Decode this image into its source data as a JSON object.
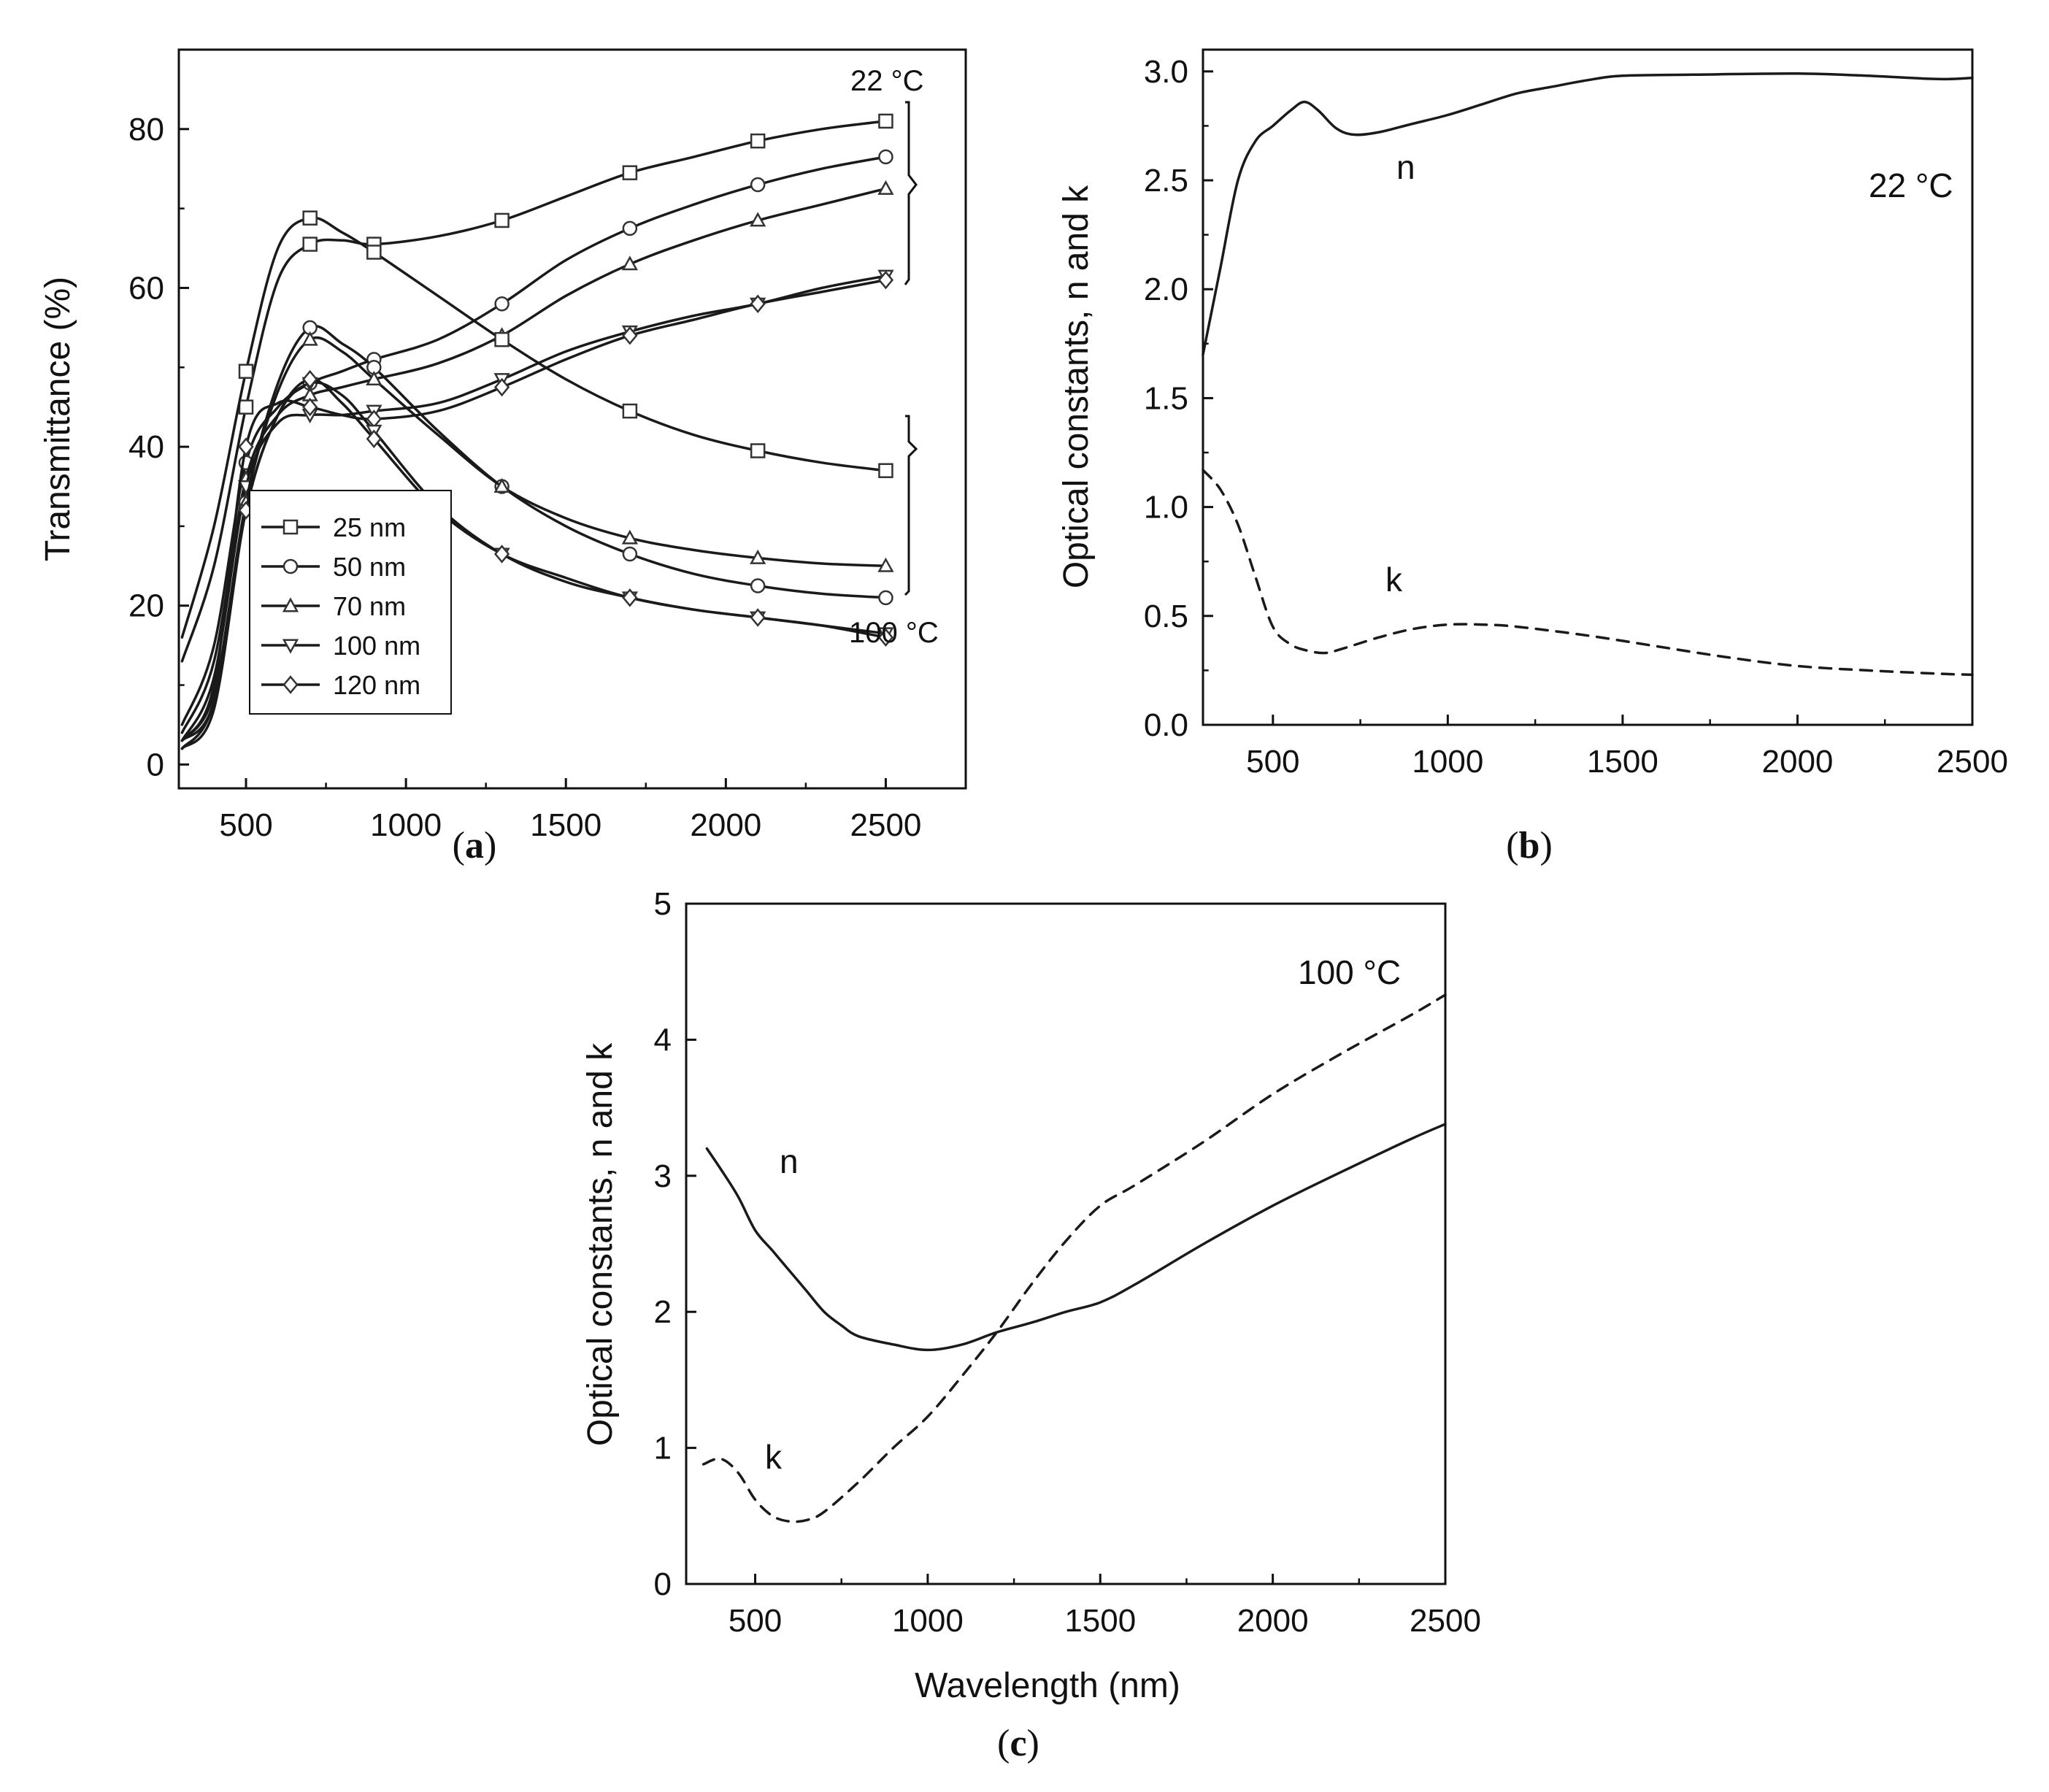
{
  "chart_data": [
    {
      "panel": "a",
      "panel_label_open": "(",
      "panel_label_letter": "a",
      "panel_label_close": ")",
      "type": "line",
      "title": "",
      "xlabel": "",
      "ylabel": "Transmittance (%)",
      "xlim": [
        290,
        2750
      ],
      "ylim": [
        -3,
        90
      ],
      "xticks": [
        500,
        1000,
        1500,
        2000,
        2500
      ],
      "yticks": [
        0,
        20,
        40,
        60,
        80
      ],
      "legend_position": "lower-left",
      "annotations": [
        {
          "text": "22 °C",
          "near": [
            2500,
            86
          ]
        },
        {
          "text": "100 °C",
          "near": [
            2500,
            8
          ]
        }
      ],
      "series": [
        {
          "name": "25 nm",
          "marker": "square",
          "condition": "22 °C",
          "x": [
            300,
            400,
            500,
            600,
            700,
            800,
            900,
            1100,
            1300,
            1500,
            1700,
            1900,
            2100,
            2300,
            2500
          ],
          "y": [
            13,
            25,
            45,
            61,
            65.5,
            66,
            65.5,
            66.5,
            68.5,
            71.5,
            74.5,
            76.5,
            78.5,
            80,
            81
          ]
        },
        {
          "name": "50 nm",
          "marker": "circle",
          "condition": "22 °C",
          "x": [
            300,
            400,
            500,
            600,
            700,
            800,
            900,
            1100,
            1300,
            1500,
            1700,
            1900,
            2100,
            2300,
            2500
          ],
          "y": [
            5,
            15,
            38,
            45,
            48,
            49.5,
            51,
            53.5,
            58,
            63.5,
            67.5,
            70.5,
            73,
            75,
            76.5
          ]
        },
        {
          "name": "70 nm",
          "marker": "triangle-up",
          "condition": "22 °C",
          "x": [
            300,
            400,
            500,
            600,
            700,
            800,
            900,
            1100,
            1300,
            1500,
            1700,
            1900,
            2100,
            2300,
            2500
          ],
          "y": [
            4,
            13,
            36,
            44,
            46.5,
            47.5,
            48.5,
            50.5,
            54,
            59,
            63,
            66,
            68.5,
            70.5,
            72.5
          ]
        },
        {
          "name": "100 nm",
          "marker": "triangle-down",
          "condition": "22 °C",
          "x": [
            300,
            400,
            500,
            600,
            700,
            800,
            900,
            1100,
            1300,
            1500,
            1700,
            1900,
            2100,
            2300,
            2500
          ],
          "y": [
            3,
            11,
            35,
            43,
            44,
            44,
            44.5,
            45.5,
            48.5,
            52,
            54.5,
            56.5,
            58,
            60,
            61.5
          ]
        },
        {
          "name": "120 nm",
          "marker": "diamond",
          "condition": "22 °C",
          "x": [
            300,
            400,
            500,
            600,
            700,
            800,
            900,
            1100,
            1300,
            1500,
            1700,
            1900,
            2100,
            2300,
            2500
          ],
          "y": [
            3,
            10,
            40,
            45.5,
            45,
            44,
            43.5,
            44.5,
            47.5,
            51,
            54,
            56,
            58,
            59.5,
            61
          ]
        },
        {
          "name": "25 nm",
          "marker": "square",
          "condition": "100 °C",
          "x": [
            300,
            400,
            500,
            600,
            700,
            800,
            900,
            1100,
            1300,
            1500,
            1700,
            1900,
            2100,
            2300,
            2500
          ],
          "y": [
            16,
            30,
            49.5,
            65,
            68.8,
            67,
            64.5,
            59,
            53.5,
            48.5,
            44.5,
            41.5,
            39.5,
            38,
            37
          ]
        },
        {
          "name": "50 nm",
          "marker": "circle",
          "condition": "100 °C",
          "x": [
            300,
            400,
            500,
            600,
            700,
            800,
            900,
            1100,
            1300,
            1500,
            1700,
            1900,
            2100,
            2300,
            2500
          ],
          "y": [
            2,
            8,
            33,
            48,
            55,
            53,
            50,
            42,
            35,
            30,
            26.5,
            24,
            22.5,
            21.5,
            21
          ]
        },
        {
          "name": "70 nm",
          "marker": "triangle-up",
          "condition": "100 °C",
          "x": [
            300,
            400,
            500,
            600,
            700,
            800,
            900,
            1100,
            1300,
            1500,
            1700,
            1900,
            2100,
            2300,
            2500
          ],
          "y": [
            3,
            9,
            33,
            47,
            53.5,
            52,
            48.5,
            41.5,
            35,
            31,
            28.5,
            27,
            26,
            25.3,
            25
          ]
        },
        {
          "name": "100 nm",
          "marker": "triangle-down",
          "condition": "100 °C",
          "x": [
            300,
            400,
            500,
            600,
            700,
            800,
            900,
            1100,
            1300,
            1500,
            1700,
            1900,
            2100,
            2300,
            2500
          ],
          "y": [
            3,
            8,
            32,
            44,
            48,
            46.5,
            42,
            32.5,
            26.5,
            23,
            21,
            19.5,
            18.5,
            17.5,
            16.5
          ]
        },
        {
          "name": "120 nm",
          "marker": "diamond",
          "condition": "100 °C",
          "x": [
            300,
            400,
            500,
            600,
            700,
            800,
            900,
            1100,
            1300,
            1500,
            1700,
            1900,
            2100,
            2300,
            2500
          ],
          "y": [
            2,
            7,
            32,
            44,
            48.5,
            45.5,
            41,
            32,
            26.5,
            23.5,
            21,
            19.5,
            18.5,
            17.5,
            16
          ]
        }
      ]
    },
    {
      "panel": "b",
      "panel_label_open": "(",
      "panel_label_letter": "b",
      "panel_label_close": ")",
      "type": "line",
      "title": "",
      "xlabel": "",
      "ylabel": "Optical constants, n and k",
      "xlim": [
        300,
        2500
      ],
      "ylim": [
        0.0,
        3.1
      ],
      "xticks": [
        500,
        1000,
        1500,
        2000,
        2500
      ],
      "yticks": [
        0.0,
        0.5,
        1.0,
        1.5,
        2.0,
        2.5,
        3.0
      ],
      "annotations": [
        {
          "text": "n",
          "near": [
            880,
            2.55
          ]
        },
        {
          "text": "k",
          "near": [
            850,
            0.62
          ]
        },
        {
          "text": "22 °C",
          "near": [
            2300,
            2.45
          ]
        }
      ],
      "series": [
        {
          "name": "n",
          "style": "solid",
          "x": [
            300,
            350,
            400,
            450,
            500,
            550,
            590,
            630,
            680,
            730,
            800,
            900,
            1000,
            1100,
            1200,
            1300,
            1400,
            1500,
            1700,
            2000,
            2200,
            2400,
            2500
          ],
          "y": [
            1.7,
            2.1,
            2.5,
            2.68,
            2.75,
            2.82,
            2.86,
            2.82,
            2.74,
            2.71,
            2.72,
            2.76,
            2.8,
            2.85,
            2.9,
            2.93,
            2.96,
            2.98,
            2.985,
            2.99,
            2.98,
            2.965,
            2.97
          ]
        },
        {
          "name": "k",
          "style": "dashed",
          "x": [
            300,
            350,
            400,
            450,
            500,
            550,
            600,
            650,
            700,
            800,
            900,
            1000,
            1100,
            1200,
            1400,
            1600,
            1800,
            2000,
            2200,
            2400,
            2500
          ],
          "y": [
            1.17,
            1.08,
            0.92,
            0.68,
            0.45,
            0.37,
            0.34,
            0.33,
            0.35,
            0.4,
            0.44,
            0.46,
            0.46,
            0.45,
            0.41,
            0.36,
            0.31,
            0.27,
            0.25,
            0.235,
            0.23
          ]
        }
      ]
    },
    {
      "panel": "c",
      "panel_label_open": "(",
      "panel_label_letter": "c",
      "panel_label_close": ")",
      "type": "line",
      "title": "",
      "xlabel": "Wavelength (nm)",
      "ylabel": "Optical constants, n and k",
      "xlim": [
        300,
        2500
      ],
      "ylim": [
        0,
        5
      ],
      "xticks": [
        500,
        1000,
        1500,
        2000,
        2500
      ],
      "yticks": [
        0,
        1,
        2,
        3,
        4,
        5
      ],
      "annotations": [
        {
          "text": "n",
          "near": [
            550,
            3.15
          ]
        },
        {
          "text": "k",
          "near": [
            470,
            0.95
          ]
        },
        {
          "text": "100 °C",
          "near": [
            2050,
            4.55
          ]
        }
      ],
      "series": [
        {
          "name": "n",
          "style": "solid",
          "x": [
            360,
            400,
            450,
            500,
            550,
            600,
            650,
            700,
            750,
            800,
            900,
            1000,
            1100,
            1200,
            1300,
            1400,
            1500,
            1600,
            1800,
            2000,
            2200,
            2400,
            2500
          ],
          "y": [
            3.2,
            3.05,
            2.85,
            2.6,
            2.45,
            2.3,
            2.15,
            2.0,
            1.9,
            1.82,
            1.76,
            1.72,
            1.76,
            1.85,
            1.92,
            2.0,
            2.07,
            2.2,
            2.5,
            2.78,
            3.03,
            3.27,
            3.38
          ]
        },
        {
          "name": "k",
          "style": "dashed",
          "x": [
            350,
            400,
            450,
            500,
            550,
            600,
            650,
            700,
            800,
            900,
            1000,
            1100,
            1200,
            1300,
            1400,
            1500,
            1600,
            1800,
            2000,
            2200,
            2400,
            2500
          ],
          "y": [
            0.88,
            0.92,
            0.82,
            0.62,
            0.5,
            0.46,
            0.47,
            0.53,
            0.75,
            1.0,
            1.23,
            1.53,
            1.85,
            2.2,
            2.52,
            2.78,
            2.93,
            3.25,
            3.6,
            3.9,
            4.18,
            4.33
          ]
        }
      ]
    }
  ]
}
